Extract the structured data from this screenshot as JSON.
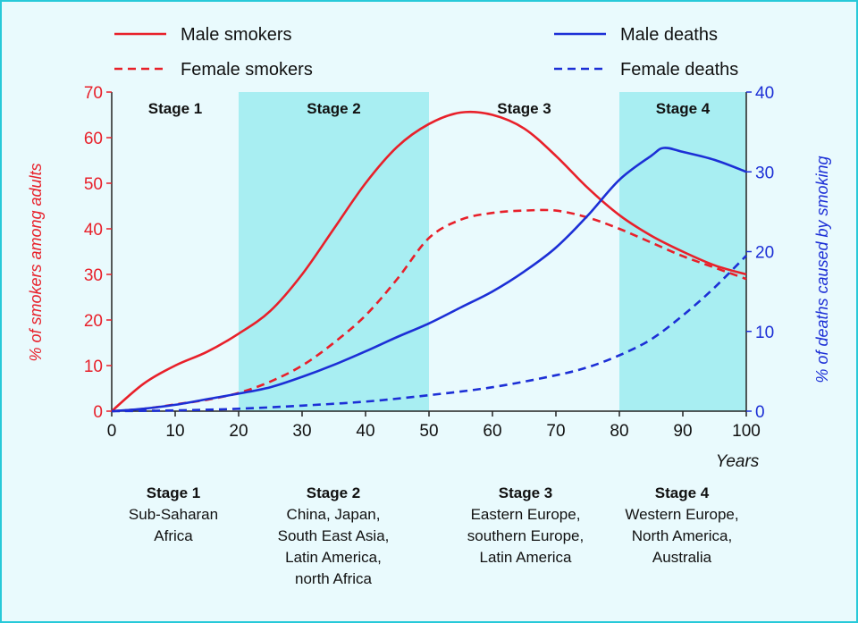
{
  "chart_data": {
    "type": "line",
    "xlabel": "Years",
    "ylabel_left": "% of smokers among adults",
    "ylabel_right": "% of deaths caused by smoking",
    "xlim": [
      0,
      100
    ],
    "ylim_left": [
      0,
      70
    ],
    "ylim_right": [
      0,
      40
    ],
    "x_ticks": [
      "0",
      "10",
      "20",
      "30",
      "40",
      "50",
      "60",
      "70",
      "80",
      "90",
      "100"
    ],
    "y_left_ticks": [
      "0",
      "10",
      "20",
      "30",
      "40",
      "50",
      "60",
      "70"
    ],
    "y_right_ticks": [
      "0",
      "10",
      "20",
      "30",
      "40"
    ],
    "legend_placement": "top",
    "stages": [
      {
        "label": "Stage 1",
        "start": 0,
        "end": 20,
        "shade": "#e9fafd"
      },
      {
        "label": "Stage 2",
        "start": 20,
        "end": 50,
        "shade": "#a8eef2"
      },
      {
        "label": "Stage 3",
        "start": 50,
        "end": 80,
        "shade": "#e9fafd"
      },
      {
        "label": "Stage 4",
        "start": 80,
        "end": 100,
        "shade": "#a8eef2"
      }
    ],
    "series": [
      {
        "name": "Male smokers",
        "axis": "left",
        "color": "#e8202a",
        "dash": false,
        "x": [
          0,
          5,
          10,
          15,
          20,
          25,
          30,
          35,
          40,
          45,
          50,
          55,
          60,
          65,
          70,
          75,
          80,
          85,
          90,
          95,
          100
        ],
        "y": [
          0,
          6,
          10,
          13,
          17,
          22,
          30,
          40,
          50,
          58,
          63,
          65.5,
          65,
          62,
          56,
          49,
          43,
          38.5,
          35,
          32,
          30
        ]
      },
      {
        "name": "Female smokers",
        "axis": "left",
        "color": "#e8202a",
        "dash": true,
        "x": [
          0,
          5,
          10,
          15,
          20,
          25,
          30,
          35,
          40,
          45,
          50,
          55,
          60,
          65,
          70,
          75,
          80,
          85,
          90,
          95,
          100
        ],
        "y": [
          0,
          0.5,
          1.5,
          2.5,
          4,
          6.5,
          10,
          15,
          21,
          29,
          38,
          42,
          43.5,
          44,
          44,
          42.5,
          40,
          37,
          34,
          31.5,
          29
        ]
      },
      {
        "name": "Male deaths",
        "axis": "right",
        "color": "#1c2fd6",
        "dash": false,
        "x": [
          0,
          5,
          10,
          15,
          20,
          25,
          30,
          35,
          40,
          45,
          50,
          55,
          60,
          65,
          70,
          75,
          80,
          85,
          87,
          90,
          95,
          100
        ],
        "y": [
          0,
          0.3,
          0.8,
          1.5,
          2.2,
          3,
          4.3,
          5.8,
          7.5,
          9.3,
          11,
          13,
          15,
          17.5,
          20.5,
          24.5,
          29,
          32,
          33,
          32.5,
          31.5,
          30
        ]
      },
      {
        "name": "Female deaths",
        "axis": "right",
        "color": "#1c2fd6",
        "dash": true,
        "x": [
          0,
          10,
          20,
          30,
          40,
          50,
          60,
          70,
          75,
          80,
          85,
          90,
          95,
          100
        ],
        "y": [
          0,
          0.1,
          0.3,
          0.7,
          1.2,
          2,
          3,
          4.5,
          5.5,
          7,
          9,
          12,
          15.5,
          19.5
        ]
      }
    ]
  },
  "descriptions": [
    {
      "title": "Stage 1",
      "lines": [
        "Sub-Saharan",
        "Africa"
      ]
    },
    {
      "title": "Stage 2",
      "lines": [
        "China, Japan,",
        "South East Asia,",
        "Latin America,",
        "north Africa"
      ]
    },
    {
      "title": "Stage 3",
      "lines": [
        "Eastern Europe,",
        "southern Europe,",
        "Latin America"
      ]
    },
    {
      "title": "Stage 4",
      "lines": [
        "Western Europe,",
        "North America,",
        "Australia"
      ]
    }
  ]
}
